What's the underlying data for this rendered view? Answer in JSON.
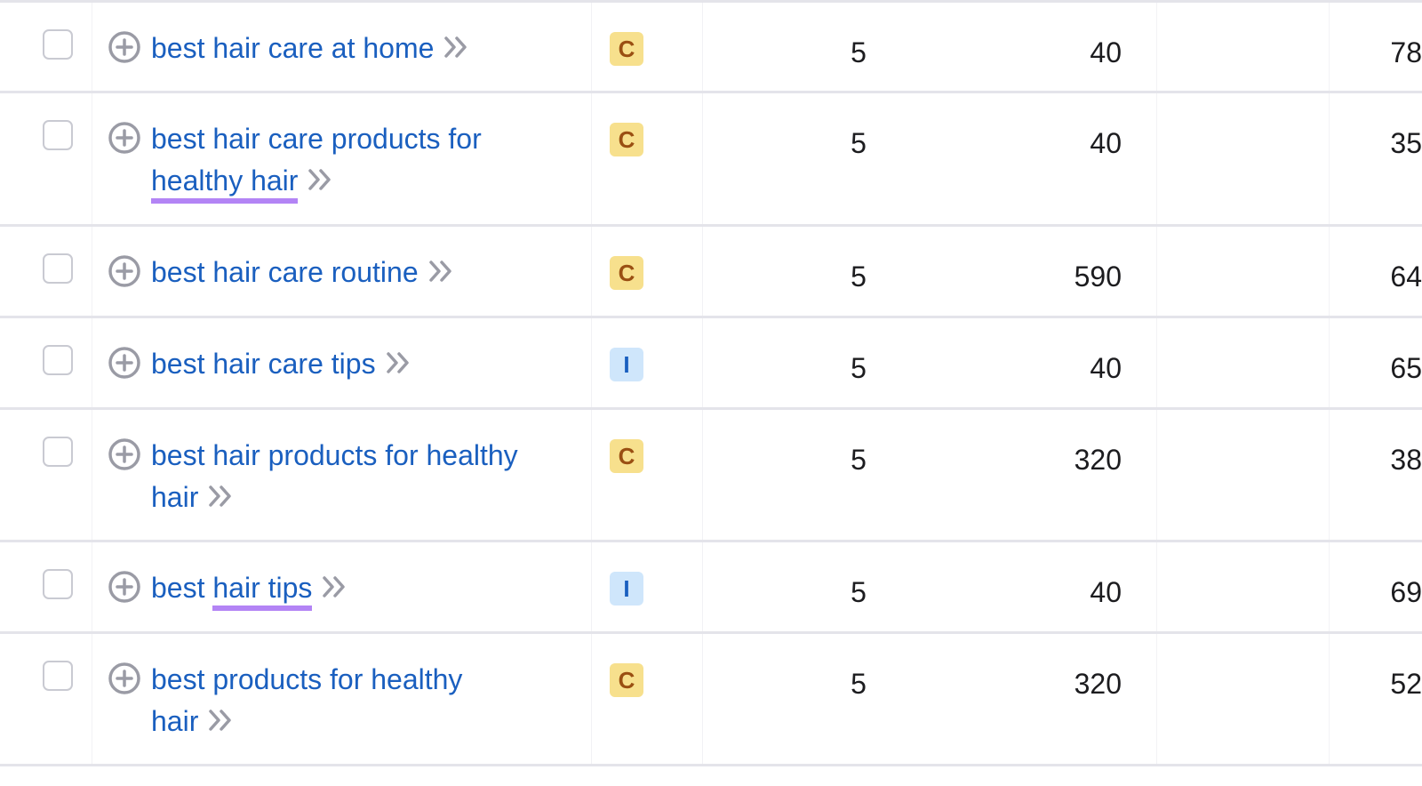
{
  "rows": [
    {
      "keyword_line1": "best hair care at home",
      "keyword_line2": "",
      "highlight": "",
      "intent": "C",
      "col_a": "5",
      "volume": "40",
      "kd": "78",
      "kd_color": "#ea5656"
    },
    {
      "keyword_line1": "best hair care products for",
      "keyword_line2": "healthy hair",
      "highlight": "line2",
      "intent": "C",
      "col_a": "5",
      "volume": "40",
      "kd": "35",
      "kd_color": "#f5c451"
    },
    {
      "keyword_line1": "best hair care routine",
      "keyword_line2": "",
      "highlight": "",
      "intent": "C",
      "col_a": "5",
      "volume": "590",
      "kd": "64",
      "kd_color": "#f0924c"
    },
    {
      "keyword_line1": "best hair care tips",
      "keyword_line2": "",
      "highlight": "",
      "intent": "I",
      "col_a": "5",
      "volume": "40",
      "kd": "65",
      "kd_color": "#f0924c"
    },
    {
      "keyword_line1": "best hair products for healthy",
      "keyword_line2": "hair",
      "highlight": "",
      "intent": "C",
      "col_a": "5",
      "volume": "320",
      "kd": "38",
      "kd_color": "#f5c451"
    },
    {
      "keyword_line1": "best hair tips",
      "keyword_line2": "",
      "highlight": "hair tips",
      "intent": "I",
      "col_a": "5",
      "volume": "40",
      "kd": "69",
      "kd_color": "#f0924c"
    },
    {
      "keyword_line1": "best products for healthy",
      "keyword_line2": "hair",
      "highlight": "",
      "intent": "C",
      "col_a": "5",
      "volume": "320",
      "kd": "52",
      "kd_color": "#f0924c"
    }
  ],
  "icons": {
    "add": "plus-circle-icon",
    "open": "double-chevron-right-icon"
  },
  "colors": {
    "link": "#1a5fbf",
    "highlight": "#b384f5"
  }
}
